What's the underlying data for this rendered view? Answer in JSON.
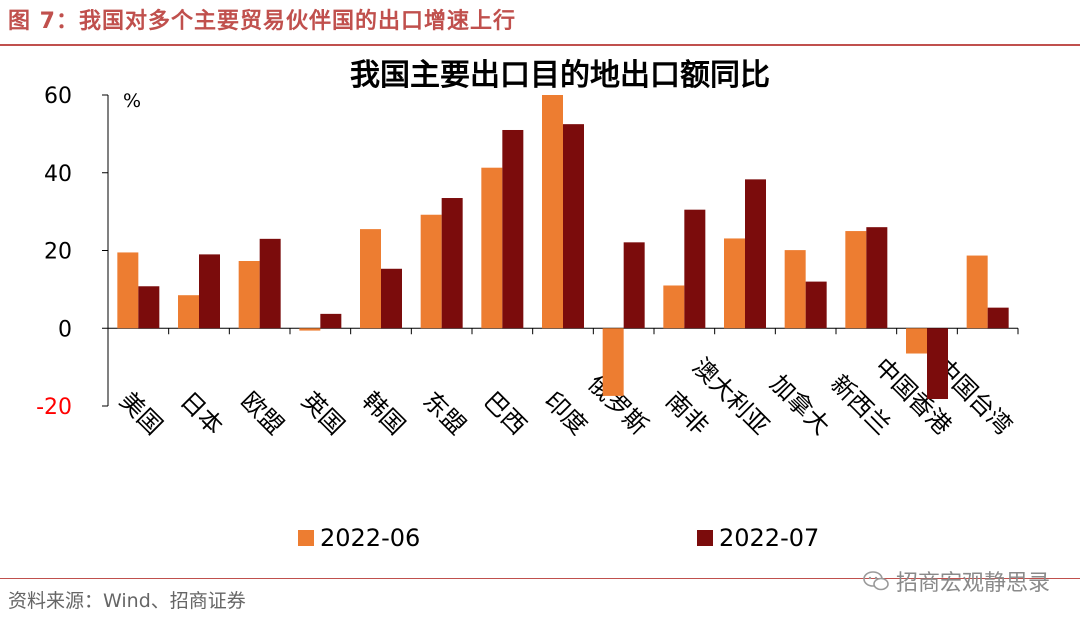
{
  "figure_title": "图 7：我国对多个主要贸易伙伴国的出口增速上行",
  "source_note": "资料来源：Wind、招商证券",
  "watermark": "招商宏观静思录",
  "colors": {
    "series_1": "#ed7d31",
    "series_2": "#7b0c0c",
    "accent": "#c0504d",
    "negative_tick": "#ff0000"
  },
  "chart_data": {
    "type": "bar",
    "title": "我国主要出口目的地出口额同比",
    "unit": "%",
    "categories": [
      "美国",
      "日本",
      "欧盟",
      "英国",
      "韩国",
      "东盟",
      "巴西",
      "印度",
      "俄罗斯",
      "南非",
      "澳大利亚",
      "加拿大",
      "新西兰",
      "中国香港",
      "中国台湾"
    ],
    "series": [
      {
        "name": "2022-06",
        "values": [
          19.5,
          8.5,
          17.3,
          -0.6,
          25.5,
          29.2,
          41.3,
          60.0,
          -17.4,
          11.0,
          23.1,
          20.1,
          25.0,
          -6.5,
          18.7
        ]
      },
      {
        "name": "2022-07",
        "values": [
          10.8,
          19.0,
          23.0,
          3.7,
          15.3,
          33.5,
          51.0,
          52.5,
          22.1,
          30.5,
          38.3,
          12.0,
          26.0,
          -18.2,
          5.3
        ]
      }
    ],
    "ylim": [
      -20,
      60
    ],
    "yticks": [
      -20,
      0,
      20,
      40,
      60
    ],
    "grid": false,
    "legend_position": "bottom"
  }
}
